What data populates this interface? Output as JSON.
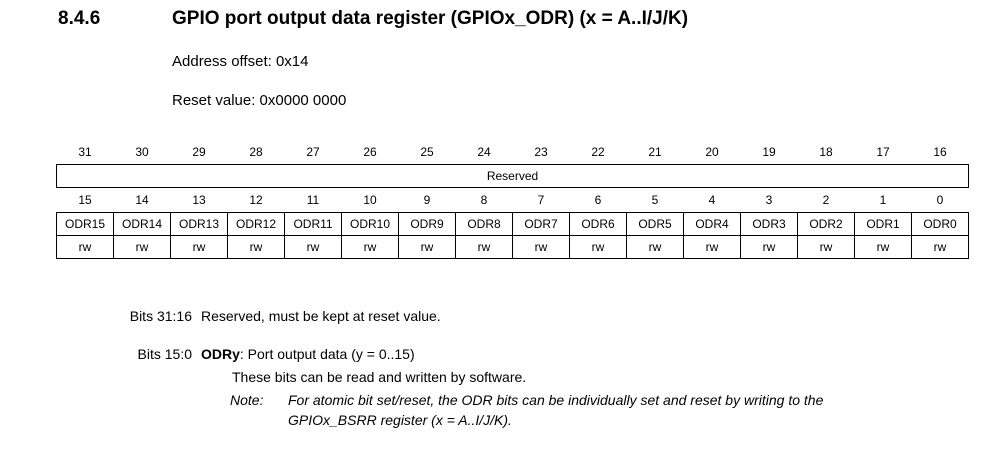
{
  "section": {
    "number": "8.4.6",
    "title": "GPIO port output data register (GPIOx_ODR) (x = A..I/J/K)"
  },
  "address_offset": "Address offset: 0x14",
  "reset_value": "Reset value: 0x0000 0000",
  "register": {
    "upper_bit_numbers": [
      "31",
      "30",
      "29",
      "28",
      "27",
      "26",
      "25",
      "24",
      "23",
      "22",
      "21",
      "20",
      "19",
      "18",
      "17",
      "16"
    ],
    "upper_reserved_label": "Reserved",
    "lower_bit_numbers": [
      "15",
      "14",
      "13",
      "12",
      "11",
      "10",
      "9",
      "8",
      "7",
      "6",
      "5",
      "4",
      "3",
      "2",
      "1",
      "0"
    ],
    "lower_field_names": [
      "ODR15",
      "ODR14",
      "ODR13",
      "ODR12",
      "ODR11",
      "ODR10",
      "ODR9",
      "ODR8",
      "ODR7",
      "ODR6",
      "ODR5",
      "ODR4",
      "ODR3",
      "ODR2",
      "ODR1",
      "ODR0"
    ],
    "access": [
      "rw",
      "rw",
      "rw",
      "rw",
      "rw",
      "rw",
      "rw",
      "rw",
      "rw",
      "rw",
      "rw",
      "rw",
      "rw",
      "rw",
      "rw",
      "rw"
    ]
  },
  "descriptions": {
    "reserved_bits": "Bits 31:16",
    "reserved_text": "Reserved, must be kept at reset value.",
    "odr_bits": "Bits 15:0",
    "odr_name": "ODRy",
    "odr_title": ": Port output data (y = 0..15)",
    "odr_text": "These bits can be read and written by software.",
    "note_label": "Note:",
    "note_line1": "For atomic bit set/reset, the ODR bits can be individually set and reset by writing to the",
    "note_line2": "GPIOx_BSRR register (x = A..I/J/K)."
  }
}
